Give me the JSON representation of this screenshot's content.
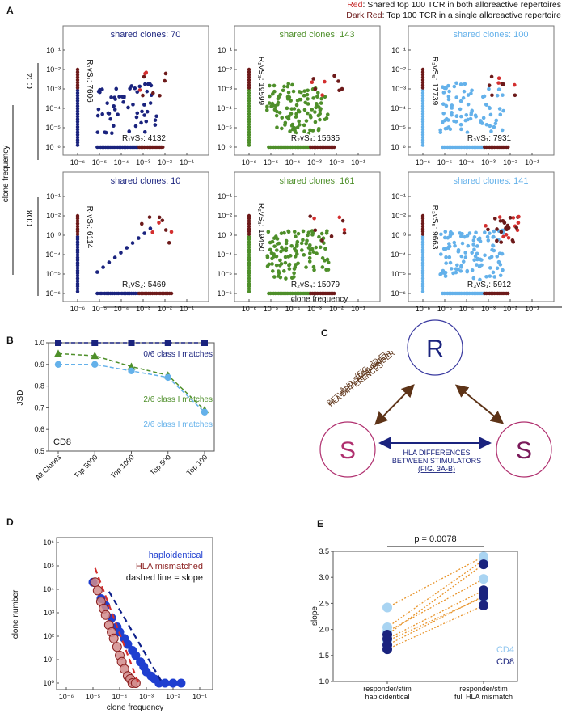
{
  "legend_top": {
    "red_key": "Red",
    "red_text": ": Shared top 100 TCR in both alloreactive repertoires",
    "darkred_key": "Dark Red",
    "darkred_text": ": Top 100 TCR in a single alloreactive repertoire"
  },
  "colors": {
    "navy": "#1a237e",
    "green": "#4e8f2a",
    "lightblue": "#64b1ea",
    "red": "#d32f2f",
    "darkred": "#6d1a1a",
    "brown": "#5d3317",
    "pink": "#b0306f",
    "purple": "#7b1b5b",
    "blue": "#1f3fd0",
    "orange": "#e8952d"
  },
  "panel_labels": {
    "A": "A",
    "B": "B",
    "C": "C",
    "D": "D",
    "E": "E"
  },
  "panelA": {
    "row_labels": [
      "CD4",
      "CD8"
    ],
    "ylabel": "clone frequency",
    "xlabel": "clone frequency",
    "tick_labels": [
      "10⁻⁶",
      "10⁻⁵",
      "10⁻⁴",
      "10⁻³",
      "10⁻²",
      "10⁻¹"
    ],
    "subplots": [
      {
        "title": "shared clones: 70",
        "color": "navy",
        "ylab": "R₁vS₁: 7606",
        "xlab": "R₁vS₂: 4132"
      },
      {
        "title": "shared clones: 143",
        "color": "green",
        "ylab": "R₂vS₃: 19599",
        "xlab": "R₂vS₄: 15635"
      },
      {
        "title": "shared clones: 100",
        "color": "lightblue",
        "ylab": "R₃vS₅: 17739",
        "xlab": "R₃vS₁: 7931"
      },
      {
        "title": "shared clones: 10",
        "color": "navy",
        "ylab": "R₁vS₁: 6114",
        "xlab": "R₁vS₂: 5469"
      },
      {
        "title": "shared clones: 161",
        "color": "green",
        "ylab": "R₂vS₃: 19450",
        "xlab": "R₂vS₄: 15079"
      },
      {
        "title": "shared clones: 141",
        "color": "lightblue",
        "ylab": "R₃vS₅: 9663",
        "xlab": "R₃vS₁: 5912"
      }
    ]
  },
  "panelC": {
    "node_R": "R",
    "node_S": "S",
    "lbl_responder_lines": [
      "HLA DIFFERENCES",
      "BETWEEN RESPONDER",
      "AND STIMULATOR",
      "(FIG. 3D-E)"
    ],
    "lbl_stim_lines": [
      "HLA DIFFERENCES",
      "BETWEEN STIMULATORS",
      "(FIG. 3A-B)"
    ]
  },
  "chart_data": [
    {
      "type": "line",
      "panel": "B",
      "categories": [
        "All Clones",
        "Top 5000",
        "Top 1000",
        "Top 500",
        "Top 100"
      ],
      "ylabel": "JSD",
      "xlabel": "",
      "ylim": [
        0.5,
        1.0
      ],
      "yticks": [
        "0.5",
        "0.6",
        "0.7",
        "0.8",
        "0.9",
        "1.0"
      ],
      "inset_text": "CD8",
      "series": [
        {
          "name": "0/6 class I matches",
          "values": [
            1.0,
            1.0,
            1.0,
            1.0,
            1.0
          ],
          "color": "#1a237e",
          "marker": "square"
        },
        {
          "name": "2/6 class I matches",
          "values": [
            0.95,
            0.94,
            0.89,
            0.85,
            0.69
          ],
          "color": "#4e8f2a",
          "marker": "triangle"
        },
        {
          "name": "2/6 class I matches",
          "values": [
            0.9,
            0.9,
            0.87,
            0.84,
            0.68
          ],
          "color": "#64b1ea",
          "marker": "circle"
        }
      ]
    },
    {
      "type": "scatter",
      "panel": "D",
      "xlabel": "clone frequency",
      "ylabel": "clone number",
      "xscale": "log",
      "yscale": "log",
      "xticks": [
        "10⁻⁶",
        "10⁻⁵",
        "10⁻⁴",
        "10⁻³",
        "10⁻²",
        "10⁻¹"
      ],
      "yticks": [
        "10⁰",
        "10¹",
        "10²",
        "10³",
        "10⁴",
        "10⁵",
        "10⁶"
      ],
      "legend": [
        "haploidentical",
        "HLA mismatched",
        "dashed line = slope"
      ],
      "series": [
        {
          "name": "haploidentical",
          "x": [
            1e-05,
            2e-05,
            3e-05,
            5e-05,
            8e-05,
            0.0001,
            0.00015,
            0.0002,
            0.0003,
            0.0004,
            0.0006,
            0.0008,
            0.001,
            0.0015,
            0.002,
            0.003,
            0.005,
            0.01,
            0.02
          ],
          "y": [
            20000,
            4000,
            2000,
            600,
            250,
            150,
            80,
            45,
            25,
            15,
            8,
            5,
            3,
            2,
            1.5,
            1,
            1,
            1,
            1
          ]
        },
        {
          "name": "HLA mismatched",
          "x": [
            1.2e-05,
            1.5e-05,
            2e-05,
            2.5e-05,
            3e-05,
            4e-05,
            5e-05,
            6e-05,
            8e-05,
            0.0001,
            0.00012,
            0.00015,
            0.0002,
            0.00025,
            0.0003,
            0.0004
          ],
          "y": [
            20000,
            9000,
            3000,
            1500,
            800,
            300,
            150,
            80,
            35,
            15,
            8,
            4,
            2,
            1.5,
            1,
            1
          ]
        }
      ]
    },
    {
      "type": "scatter",
      "panel": "E",
      "ylabel": "slope",
      "ylim": [
        1.0,
        3.5
      ],
      "yticks": [
        "1.0",
        "1.5",
        "2.0",
        "2.5",
        "3.0",
        "3.5"
      ],
      "categories": [
        "responder/stim haploidentical",
        "responder/stim full HLA mismatch"
      ],
      "cat_lines": [
        [
          "responder/stim",
          "haploidentical"
        ],
        [
          "responder/stim",
          "full HLA mismatch"
        ]
      ],
      "annotation": "p = 0.0078",
      "legend": [
        "CD4",
        "CD8"
      ],
      "pairs": [
        {
          "group": "CD4",
          "values": [
            2.42,
            3.4
          ]
        },
        {
          "group": "CD4",
          "values": [
            2.04,
            3.33
          ]
        },
        {
          "group": "CD4",
          "values": [
            1.96,
            2.97
          ]
        },
        {
          "group": "CD4",
          "values": [
            1.78,
            2.62
          ]
        },
        {
          "group": "CD8",
          "values": [
            1.9,
            3.25
          ]
        },
        {
          "group": "CD8",
          "values": [
            1.82,
            2.75
          ]
        },
        {
          "group": "CD8",
          "values": [
            1.7,
            2.64
          ]
        },
        {
          "group": "CD8",
          "values": [
            1.62,
            2.46
          ]
        }
      ]
    }
  ]
}
